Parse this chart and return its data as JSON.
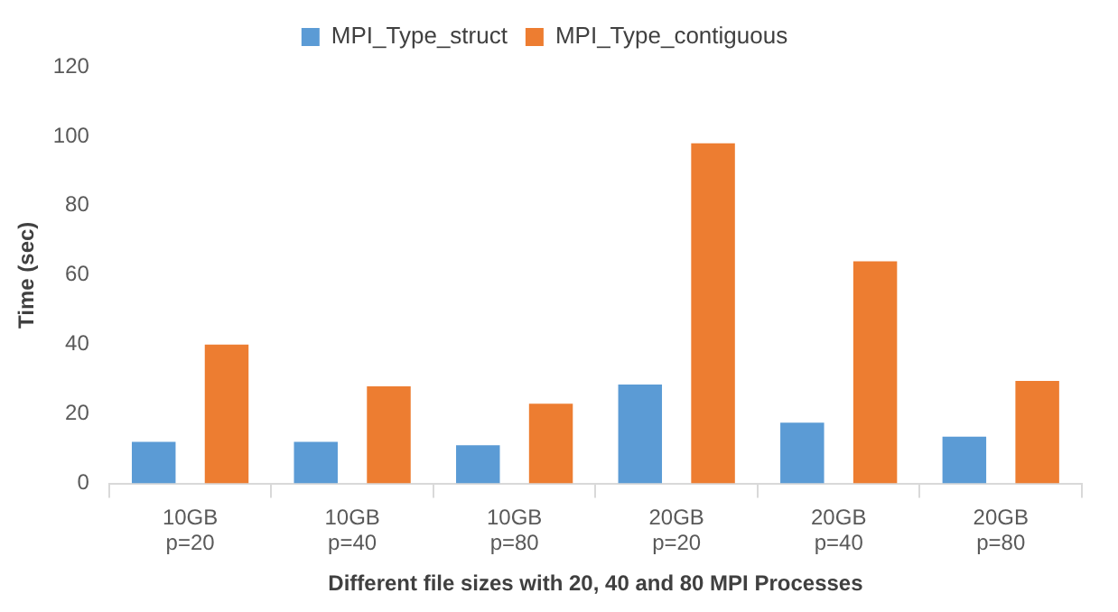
{
  "chart_data": {
    "type": "bar",
    "xlabel": "Different file sizes with 20, 40 and 80 MPI Processes",
    "ylabel": "Time (sec)",
    "categories": [
      "10GB\np=20",
      "10GB\np=40",
      "10GB\np=80",
      "20GB\np=20",
      "20GB\np=40",
      "20GB\np=80"
    ],
    "series": [
      {
        "name": "MPI_Type_struct",
        "color": "#5b9bd5",
        "values": [
          12,
          12,
          11,
          28.5,
          17.5,
          13.5
        ]
      },
      {
        "name": "MPI_Type_contiguous",
        "color": "#ed7d31",
        "values": [
          40,
          28,
          23,
          98,
          64,
          29.5
        ]
      }
    ],
    "ylim": [
      0,
      120
    ],
    "yticks": [
      0,
      20,
      40,
      60,
      80,
      100,
      120
    ],
    "grid": false,
    "legend": "top"
  }
}
